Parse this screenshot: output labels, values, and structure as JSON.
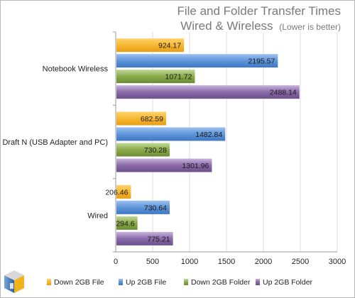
{
  "chart_data": {
    "type": "bar",
    "orientation": "horizontal",
    "title": "File and Folder Transfer Times",
    "subtitle": "Wired & Wireless",
    "subtitle_note": "(Lower is better)",
    "categories": [
      "Notebook Wireless",
      "Draft N (USB Adapter and PC)",
      "Wired"
    ],
    "series": [
      {
        "name": "Down 2GB File",
        "color": "#f7b733",
        "values": [
          924.17,
          682.59,
          206.46
        ]
      },
      {
        "name": "Up 2GB File",
        "color": "#5f95d9",
        "values": [
          2195.57,
          1482.84,
          730.64
        ]
      },
      {
        "name": "Down 2GB Folder",
        "color": "#8aaa4a",
        "values": [
          1071.72,
          730.28,
          294.6
        ]
      },
      {
        "name": "Up 2GB Folder",
        "color": "#8a6aa8",
        "values": [
          2488.14,
          1301.96,
          775.21
        ]
      }
    ],
    "x_ticks": [
      "0",
      "500",
      "1000",
      "1500",
      "2000",
      "2500",
      "3000"
    ],
    "xlim": [
      0,
      3000
    ],
    "grid": true,
    "legend_position": "bottom",
    "value_labels": [
      [
        "924.17",
        "682.59",
        "206.46"
      ],
      [
        "2195.57",
        "1482.84",
        "730.64"
      ],
      [
        "1071.72",
        "730.28",
        "294.6"
      ],
      [
        "2488.14",
        "1301.96",
        "775.21"
      ]
    ]
  }
}
